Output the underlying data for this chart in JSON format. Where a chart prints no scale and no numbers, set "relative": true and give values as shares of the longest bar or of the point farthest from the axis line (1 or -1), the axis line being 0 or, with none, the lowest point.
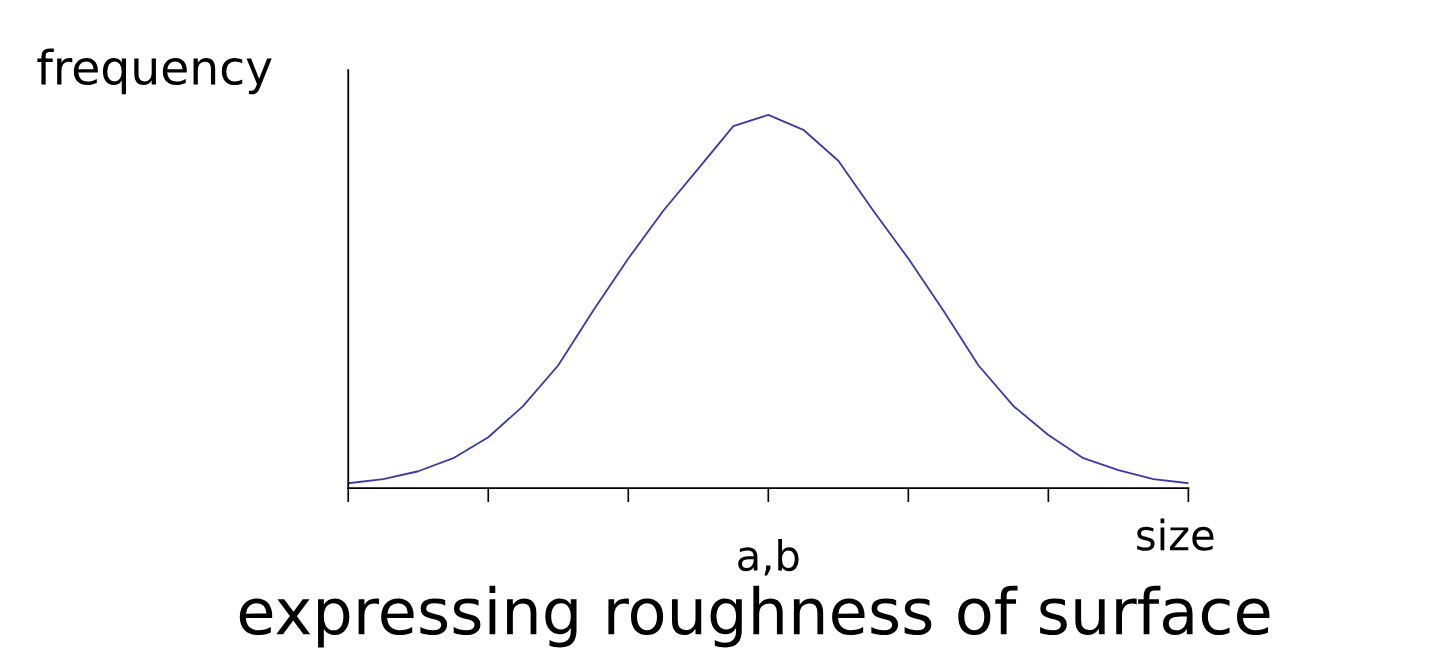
{
  "chart_data": {
    "type": "line",
    "relative": true,
    "ylabel": "frequency",
    "xlabel": "size",
    "annotations": [
      "a,b",
      "expressing roughness of surface"
    ],
    "categories": [
      null,
      null,
      null,
      null,
      null,
      null,
      null,
      null,
      null,
      null,
      null,
      null,
      null,
      null,
      null,
      null,
      null,
      null,
      null,
      null,
      null,
      null,
      null,
      null,
      null
    ],
    "series": [
      {
        "color": "#3a3aaa",
        "values": [
          0.013,
          0.024,
          0.045,
          0.08,
          0.136,
          0.22,
          0.329,
          0.476,
          0.615,
          0.743,
          0.856,
          0.97,
          1.0,
          0.96,
          0.877,
          0.743,
          0.615,
          0.476,
          0.329,
          0.22,
          0.142,
          0.08,
          0.048,
          0.024,
          0.013
        ]
      }
    ],
    "grid": false,
    "legend": false,
    "marker": "none",
    "line_style": "solid"
  }
}
